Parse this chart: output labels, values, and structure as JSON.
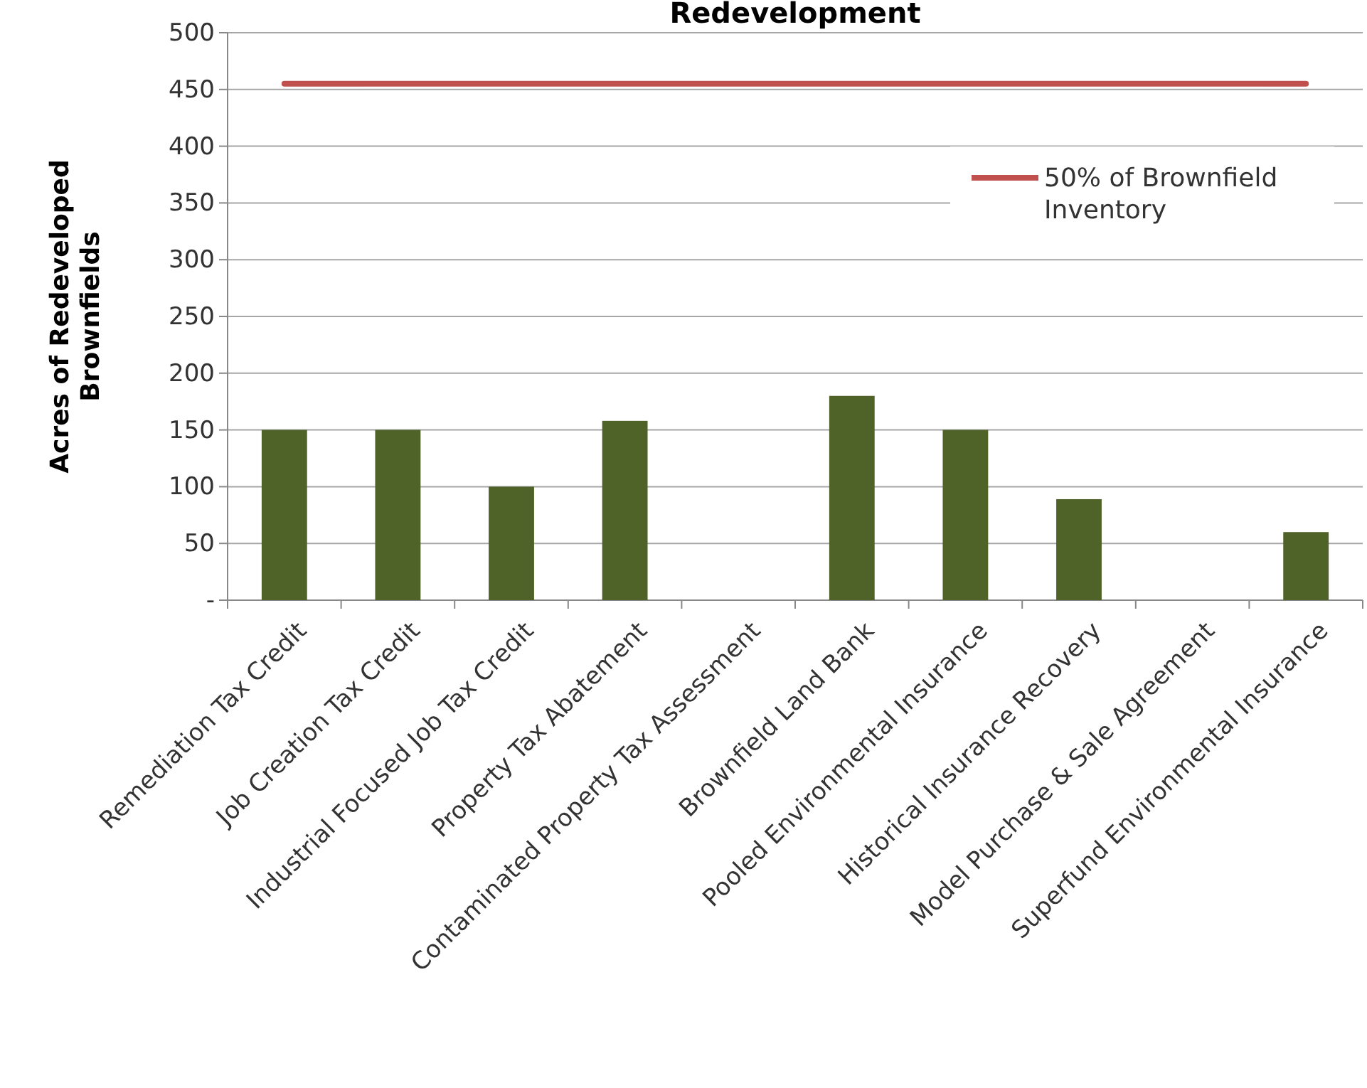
{
  "chart_data": {
    "type": "bar",
    "title": "Redevelopment",
    "ylabel": "Acres of Redeveloped Brownfields",
    "categories": [
      "Remediation Tax Credit",
      "Job Creation Tax Credit",
      "Industrial Focused Job Tax Credit",
      "Property Tax Abatement",
      "Contaminated Property Tax Assessment",
      "Brownfield Land Bank",
      "Pooled Environmental Insurance",
      "Historical Insurance Recovery",
      "Model Purchase & Sale Agreement",
      "Superfund Environmental Insurance"
    ],
    "series": [
      {
        "color": "#4f6228",
        "values": [
          150,
          150,
          100,
          158,
          0,
          180,
          150,
          89,
          0,
          60
        ]
      },
      {
        "type": "line",
        "name": "50% of Brownfield Inventory",
        "color": "#c0504d",
        "values": [
          455,
          455,
          455,
          455,
          455,
          455,
          455,
          455,
          455,
          455
        ]
      }
    ],
    "ylim": [
      0,
      500
    ],
    "yticks": [
      {
        "value": 0,
        "label": "-"
      },
      50,
      100,
      150,
      200,
      250,
      300,
      350,
      400,
      450,
      500
    ],
    "grid": "y",
    "legend": "top right",
    "marker": "none"
  }
}
